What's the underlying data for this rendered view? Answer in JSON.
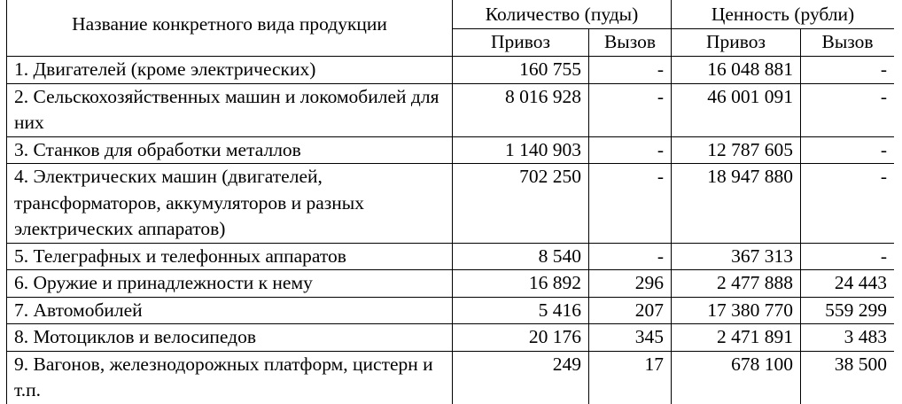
{
  "table": {
    "name_header": "Название конкретного вида продукции",
    "quantity_header": "Количество (пуды)",
    "value_header": "Ценность (рубли)",
    "import_label": "Привоз",
    "export_label": "Вызов",
    "rows": [
      {
        "name": "1. Двигателей (кроме электрических)",
        "qty_import": "160 755",
        "qty_export": "-",
        "val_import": "16 048 881",
        "val_export": "-"
      },
      {
        "name": "2. Сельскохозяйственных машин и локомобилей для них",
        "qty_import": "8 016 928",
        "qty_export": "-",
        "val_import": "46 001 091",
        "val_export": "-"
      },
      {
        "name": "3. Станков для обработки металлов",
        "qty_import": "1 140 903",
        "qty_export": "-",
        "val_import": "12 787 605",
        "val_export": "-"
      },
      {
        "name": "4. Электрических машин (двигателей, трансформаторов, аккумуляторов и разных электрических аппаратов)",
        "qty_import": "702 250",
        "qty_export": "-",
        "val_import": "18 947 880",
        "val_export": "-"
      },
      {
        "name": "5. Телеграфных и телефонных аппаратов",
        "qty_import": "8 540",
        "qty_export": "-",
        "val_import": "367 313",
        "val_export": "-"
      },
      {
        "name": "6. Оружие и принадлежности к нему",
        "qty_import": "16 892",
        "qty_export": "296",
        "val_import": "2 477 888",
        "val_export": "24 443"
      },
      {
        "name": "7. Автомобилей",
        "qty_import": "5 416",
        "qty_export": "207",
        "val_import": "17 380 770",
        "val_export": "559 299"
      },
      {
        "name": "8. Мотоциклов и велосипедов",
        "qty_import": "20 176",
        "qty_export": "345",
        "val_import": "2 471 891",
        "val_export": "3 483"
      },
      {
        "name": "9. Вагонов, железнодорожных платформ, цистерн и т.п.",
        "qty_import": "249",
        "qty_export": "17",
        "val_import": "678 100",
        "val_export": "38 500"
      }
    ]
  }
}
